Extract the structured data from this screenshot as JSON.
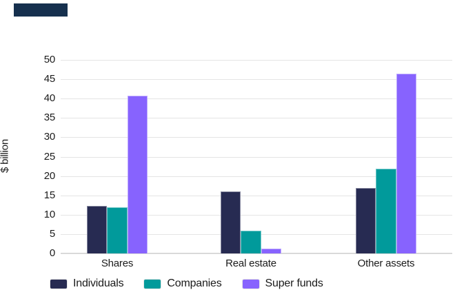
{
  "decor": {
    "corner_block_color": "#16304e"
  },
  "colors": {
    "background": "#ffffff",
    "gridline": "#e4e4e4",
    "baseline": "#d9d9d9",
    "text": "#1a1a1a"
  },
  "chart_data": {
    "type": "bar",
    "title": "",
    "ylabel": "$ billion",
    "xlabel": "",
    "categories": [
      "Shares",
      "Real estate",
      "Other assets"
    ],
    "series": [
      {
        "name": "Individuals",
        "color": "#272b52",
        "values": [
          12.2,
          16.1,
          16.9
        ]
      },
      {
        "name": "Companies",
        "color": "#019a9b",
        "values": [
          11.9,
          5.9,
          21.9
        ]
      },
      {
        "name": "Super funds",
        "color": "#8763fe",
        "values": [
          40.7,
          1.3,
          46.5
        ]
      }
    ],
    "ylim": [
      0,
      50
    ],
    "yticks": [
      0,
      5,
      10,
      15,
      20,
      25,
      30,
      35,
      40,
      45,
      50
    ],
    "grid": true,
    "legend_position": "bottom"
  }
}
